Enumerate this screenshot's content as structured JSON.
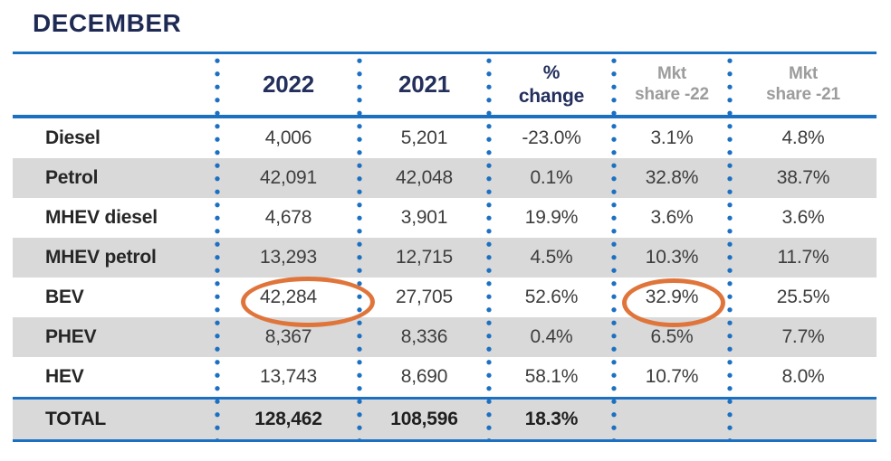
{
  "title": "DECEMBER",
  "colors": {
    "navy": "#232f5c",
    "line_blue": "#1c70c2",
    "row_shade": "#d9d9d9",
    "gray_header": "#9c9c9c",
    "highlight_orange": "#e0753b"
  },
  "table": {
    "columns": [
      {
        "label": ""
      },
      {
        "label": "2022"
      },
      {
        "label": "2021"
      },
      {
        "line1": "%",
        "line2": "change"
      },
      {
        "line1": "Mkt",
        "line2": "share -22"
      },
      {
        "line1": "Mkt",
        "line2": "share -21"
      }
    ],
    "rows": [
      {
        "label": "Diesel",
        "y2022": "4,006",
        "y2021": "5,201",
        "pct": "-23.0%",
        "mkt22": "3.1%",
        "mkt21": "4.8%"
      },
      {
        "label": "Petrol",
        "y2022": "42,091",
        "y2021": "42,048",
        "pct": "0.1%",
        "mkt22": "32.8%",
        "mkt21": "38.7%"
      },
      {
        "label": "MHEV diesel",
        "y2022": "4,678",
        "y2021": "3,901",
        "pct": "19.9%",
        "mkt22": "3.6%",
        "mkt21": "3.6%"
      },
      {
        "label": "MHEV petrol",
        "y2022": "13,293",
        "y2021": "12,715",
        "pct": "4.5%",
        "mkt22": "10.3%",
        "mkt21": "11.7%"
      },
      {
        "label": "BEV",
        "y2022": "42,284",
        "y2021": "27,705",
        "pct": "52.6%",
        "mkt22": "32.9%",
        "mkt21": "25.5%"
      },
      {
        "label": "PHEV",
        "y2022": "8,367",
        "y2021": "8,336",
        "pct": "0.4%",
        "mkt22": "6.5%",
        "mkt21": "7.7%"
      },
      {
        "label": "HEV",
        "y2022": "13,743",
        "y2021": "8,690",
        "pct": "58.1%",
        "mkt22": "10.7%",
        "mkt21": "8.0%"
      }
    ],
    "total": {
      "label": "TOTAL",
      "y2022": "128,462",
      "y2021": "108,596",
      "pct": "18.3%",
      "mkt22": "",
      "mkt21": ""
    }
  },
  "highlights": [
    {
      "name": "bev-2022-circled",
      "value": "42,284",
      "shape": "orange-ellipse"
    },
    {
      "name": "bev-mkt-share-22-circled",
      "value": "32.9%",
      "shape": "orange-ellipse"
    }
  ],
  "chart_data": {
    "type": "table",
    "title": "DECEMBER",
    "columns": [
      "",
      "2022",
      "2021",
      "% change",
      "Mkt share -22",
      "Mkt share -21"
    ],
    "rows": [
      [
        "Diesel",
        4006,
        5201,
        "-23.0%",
        "3.1%",
        "4.8%"
      ],
      [
        "Petrol",
        42091,
        42048,
        "0.1%",
        "32.8%",
        "38.7%"
      ],
      [
        "MHEV diesel",
        4678,
        3901,
        "19.9%",
        "3.6%",
        "3.6%"
      ],
      [
        "MHEV petrol",
        13293,
        12715,
        "4.5%",
        "10.3%",
        "11.7%"
      ],
      [
        "BEV",
        42284,
        27705,
        "52.6%",
        "32.9%",
        "25.5%"
      ],
      [
        "PHEV",
        8367,
        8336,
        "0.4%",
        "6.5%",
        "7.7%"
      ],
      [
        "HEV",
        13743,
        8690,
        "58.1%",
        "10.7%",
        "8.0%"
      ],
      [
        "TOTAL",
        128462,
        108596,
        "18.3%",
        null,
        null
      ]
    ],
    "annotations": [
      "BEV 2022 registrations (42,284) circled in orange",
      "BEV market share 2022 (32.9%) circled in orange"
    ],
    "layout": {
      "shaded_rows": [
        "Petrol",
        "MHEV petrol",
        "PHEV",
        "TOTAL"
      ],
      "grid": "dotted vertical blue separators"
    }
  }
}
